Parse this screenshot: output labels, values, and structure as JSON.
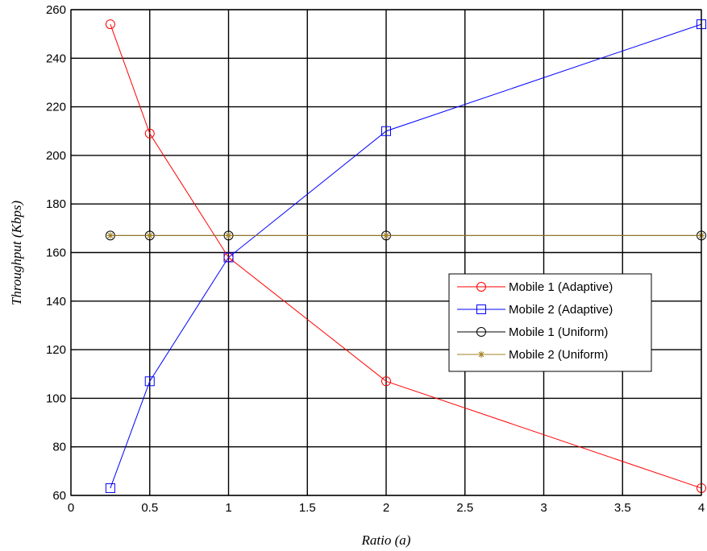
{
  "chart_data": {
    "type": "line",
    "title": "",
    "xlabel": "Ratio (a)",
    "ylabel": "Throughput (Kbps)",
    "xlim": [
      0,
      4
    ],
    "ylim": [
      60,
      260
    ],
    "xticks": [
      0,
      0.5,
      1,
      1.5,
      2,
      2.5,
      3,
      3.5,
      4
    ],
    "yticks": [
      60,
      80,
      100,
      120,
      140,
      160,
      180,
      200,
      220,
      240,
      260
    ],
    "grid": true,
    "legend_position": "right",
    "series": [
      {
        "name": "Mobile 1 (Adaptive)",
        "color": "#ff0000",
        "marker": "circle",
        "x": [
          0.25,
          0.5,
          1,
          2,
          4
        ],
        "y": [
          254,
          209,
          158,
          107,
          63
        ]
      },
      {
        "name": "Mobile 2 (Adaptive)",
        "color": "#0000ff",
        "marker": "square",
        "x": [
          0.25,
          0.5,
          1,
          2,
          4
        ],
        "y": [
          63,
          107,
          158,
          210,
          254
        ]
      },
      {
        "name": "Mobile 1 (Uniform)",
        "color": "#000000",
        "marker": "circle",
        "x": [
          0.25,
          0.5,
          1,
          2,
          4
        ],
        "y": [
          167,
          167,
          167,
          167,
          167
        ]
      },
      {
        "name": "Mobile 2 (Uniform)",
        "color": "#a08020",
        "marker": "star",
        "x": [
          0.25,
          0.5,
          1,
          2,
          4
        ],
        "y": [
          167,
          167,
          167,
          167,
          167
        ]
      }
    ]
  }
}
